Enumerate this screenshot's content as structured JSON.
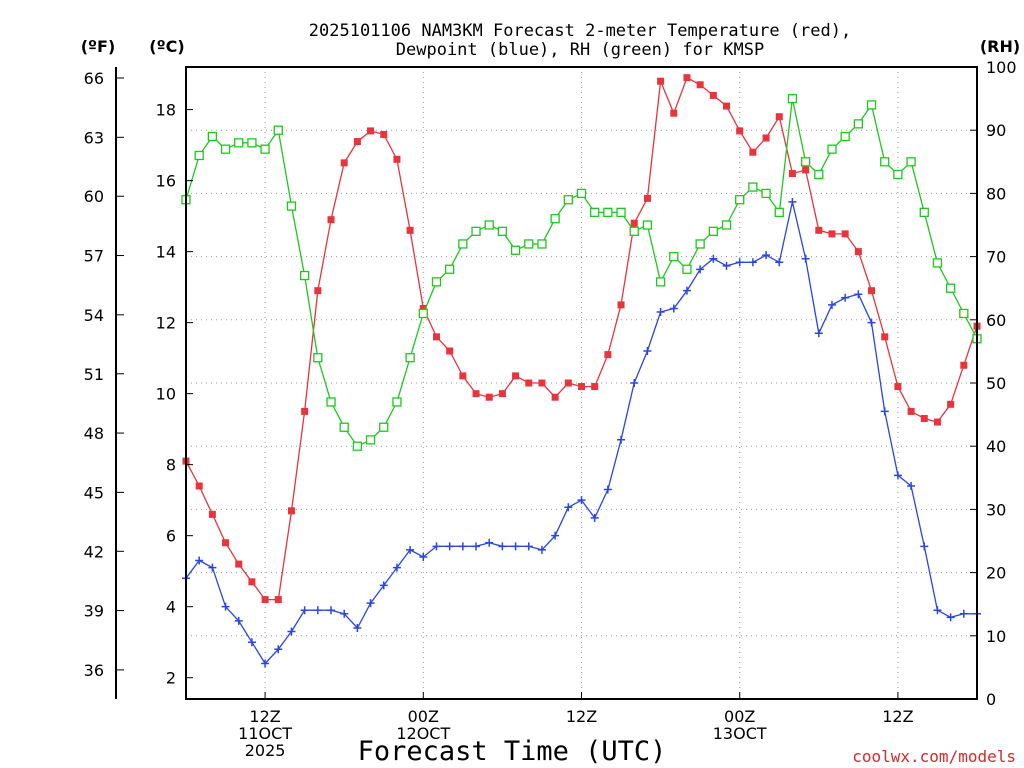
{
  "chart_data": {
    "type": "line",
    "title_lines": [
      "2025101106 NAM3KM Forecast 2-meter Temperature (red),",
      "Dewpoint (blue), RH (green) for KMSP"
    ],
    "xlabel": "Forecast Time (UTC)",
    "watermark": "coolwx.com/models",
    "axes": {
      "f_label": "(ºF)",
      "c_label": "(ºC)",
      "rh_label": "(RH)",
      "c_range": [
        1.4,
        19.2
      ],
      "rh_range": [
        0,
        100
      ],
      "x_range": [
        6,
        66
      ],
      "f_ticks": [
        {
          "text": "36",
          "c": 2.22
        },
        {
          "text": "39",
          "c": 3.89
        },
        {
          "text": "42",
          "c": 5.56
        },
        {
          "text": "45",
          "c": 7.22
        },
        {
          "text": "48",
          "c": 8.89
        },
        {
          "text": "51",
          "c": 10.56
        },
        {
          "text": "54",
          "c": 12.22
        },
        {
          "text": "57",
          "c": 13.89
        },
        {
          "text": "60",
          "c": 15.56
        },
        {
          "text": "63",
          "c": 17.22
        },
        {
          "text": "66",
          "c": 18.89
        }
      ],
      "c_ticks": [
        {
          "text": "2",
          "c": 2
        },
        {
          "text": "4",
          "c": 4
        },
        {
          "text": "6",
          "c": 6
        },
        {
          "text": "8",
          "c": 8
        },
        {
          "text": "10",
          "c": 10
        },
        {
          "text": "12",
          "c": 12
        },
        {
          "text": "14",
          "c": 14
        },
        {
          "text": "16",
          "c": 16
        },
        {
          "text": "18",
          "c": 18
        }
      ],
      "rh_ticks": [
        {
          "text": "0",
          "rh": 0
        },
        {
          "text": "10",
          "rh": 10
        },
        {
          "text": "20",
          "rh": 20
        },
        {
          "text": "30",
          "rh": 30
        },
        {
          "text": "40",
          "rh": 40
        },
        {
          "text": "50",
          "rh": 50
        },
        {
          "text": "60",
          "rh": 60
        },
        {
          "text": "70",
          "rh": 70
        },
        {
          "text": "80",
          "rh": 80
        },
        {
          "text": "90",
          "rh": 90
        },
        {
          "text": "100",
          "rh": 100
        }
      ],
      "x_ticks": [
        {
          "x": 12,
          "lines": [
            "12Z",
            "11OCT",
            "2025"
          ]
        },
        {
          "x": 24,
          "lines": [
            "00Z",
            "12OCT"
          ]
        },
        {
          "x": 36,
          "lines": [
            "12Z"
          ]
        },
        {
          "x": 48,
          "lines": [
            "00Z",
            "13OCT"
          ]
        },
        {
          "x": 60,
          "lines": [
            "12Z"
          ]
        }
      ],
      "grid": true
    },
    "colors": {
      "temperature": "#e8343c",
      "dewpoint": "#2a46e0",
      "rh": "#1ec81e",
      "grid": "#9a9a9a",
      "axis": "#000000"
    },
    "series": [
      {
        "name": "Temperature (red)",
        "unit": "C",
        "marker": "filled-square",
        "x": [
          6,
          7,
          8,
          9,
          10,
          11,
          12,
          13,
          14,
          15,
          16,
          17,
          18,
          19,
          20,
          21,
          22,
          23,
          24,
          25,
          26,
          27,
          28,
          29,
          30,
          31,
          32,
          33,
          34,
          35,
          36,
          37,
          38,
          39,
          40,
          41,
          42,
          43,
          44,
          45,
          46,
          47,
          48,
          49,
          50,
          51,
          52,
          53,
          54,
          55,
          56,
          57,
          58,
          59,
          60,
          61,
          62,
          63,
          64,
          65,
          66
        ],
        "values": [
          8.1,
          7.4,
          6.6,
          5.8,
          5.2,
          4.7,
          4.2,
          4.2,
          6.7,
          9.5,
          12.9,
          14.9,
          16.5,
          17.1,
          17.4,
          17.3,
          16.6,
          14.6,
          12.4,
          11.6,
          11.2,
          10.5,
          10.0,
          9.9,
          10.0,
          10.5,
          10.3,
          10.3,
          9.9,
          10.3,
          10.2,
          10.2,
          11.1,
          12.5,
          14.8,
          15.5,
          18.8,
          17.9,
          18.9,
          18.7,
          18.4,
          18.1,
          17.4,
          16.8,
          17.2,
          17.8,
          16.2,
          16.3,
          14.6,
          14.5,
          14.5,
          14.0,
          12.9,
          11.6,
          10.2,
          9.5,
          9.3,
          9.2,
          9.7,
          10.8,
          11.9
        ]
      },
      {
        "name": "Dewpoint (blue)",
        "unit": "C",
        "marker": "plus",
        "x": [
          6,
          7,
          8,
          9,
          10,
          11,
          12,
          13,
          14,
          15,
          16,
          17,
          18,
          19,
          20,
          21,
          22,
          23,
          24,
          25,
          26,
          27,
          28,
          29,
          30,
          31,
          32,
          33,
          34,
          35,
          36,
          37,
          38,
          39,
          40,
          41,
          42,
          43,
          44,
          45,
          46,
          47,
          48,
          49,
          50,
          51,
          52,
          53,
          54,
          55,
          56,
          57,
          58,
          59,
          60,
          61,
          62,
          63,
          64,
          65,
          66
        ],
        "values": [
          4.8,
          5.3,
          5.1,
          4.0,
          3.6,
          3.0,
          2.4,
          2.8,
          3.3,
          3.9,
          3.9,
          3.9,
          3.8,
          3.4,
          4.1,
          4.6,
          5.1,
          5.6,
          5.4,
          5.7,
          5.7,
          5.7,
          5.7,
          5.8,
          5.7,
          5.7,
          5.7,
          5.6,
          6.0,
          6.8,
          7.0,
          6.5,
          7.3,
          8.7,
          10.3,
          11.2,
          12.3,
          12.4,
          12.9,
          13.5,
          13.8,
          13.6,
          13.7,
          13.7,
          13.9,
          13.7,
          15.4,
          13.8,
          11.7,
          12.5,
          12.7,
          12.8,
          12.0,
          9.5,
          7.7,
          7.4,
          5.7,
          3.9,
          3.7,
          3.8,
          3.8
        ]
      },
      {
        "name": "RH (green)",
        "unit": "%",
        "marker": "open-square",
        "x": [
          6,
          7,
          8,
          9,
          10,
          11,
          12,
          13,
          14,
          15,
          16,
          17,
          18,
          19,
          20,
          21,
          22,
          23,
          24,
          25,
          26,
          27,
          28,
          29,
          30,
          31,
          32,
          33,
          34,
          35,
          36,
          37,
          38,
          39,
          40,
          41,
          42,
          43,
          44,
          45,
          46,
          47,
          48,
          49,
          50,
          51,
          52,
          53,
          54,
          55,
          56,
          57,
          58,
          59,
          60,
          61,
          62,
          63,
          64,
          65,
          66
        ],
        "values": [
          79,
          86,
          89,
          87,
          88,
          88,
          87,
          90,
          78,
          67,
          54,
          47,
          43,
          40,
          41,
          43,
          47,
          54,
          61,
          66,
          68,
          72,
          74,
          75,
          74,
          71,
          72,
          72,
          76,
          79,
          80,
          77,
          77,
          77,
          74,
          75,
          66,
          70,
          68,
          72,
          74,
          75,
          79,
          81,
          80,
          77,
          95,
          85,
          83,
          87,
          89,
          91,
          94,
          85,
          83,
          85,
          77,
          69,
          65,
          61,
          57
        ]
      }
    ]
  }
}
